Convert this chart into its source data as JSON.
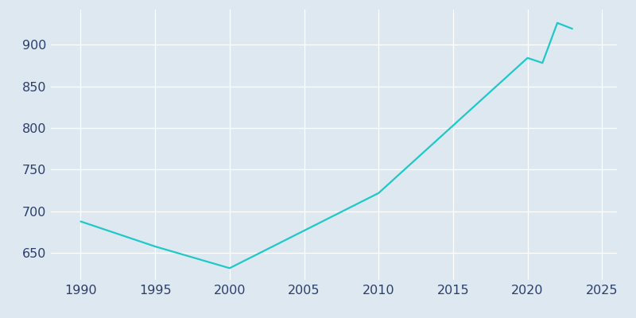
{
  "years": [
    1990,
    1995,
    2000,
    2010,
    2020,
    2021,
    2022,
    2023
  ],
  "population": [
    688,
    658,
    632,
    722,
    884,
    878,
    926,
    919
  ],
  "line_color": "#20c8c8",
  "background_color": "#dde8f0",
  "grid_color": "#ffffff",
  "axis_label_color": "#2c3e6b",
  "xlim": [
    1988,
    2026
  ],
  "ylim": [
    618,
    942
  ],
  "xticks": [
    1990,
    1995,
    2000,
    2005,
    2010,
    2015,
    2020,
    2025
  ],
  "yticks": [
    650,
    700,
    750,
    800,
    850,
    900
  ],
  "linewidth": 1.6,
  "figsize": [
    8.0,
    4.0
  ],
  "dpi": 100,
  "tick_labelsize": 11.5
}
